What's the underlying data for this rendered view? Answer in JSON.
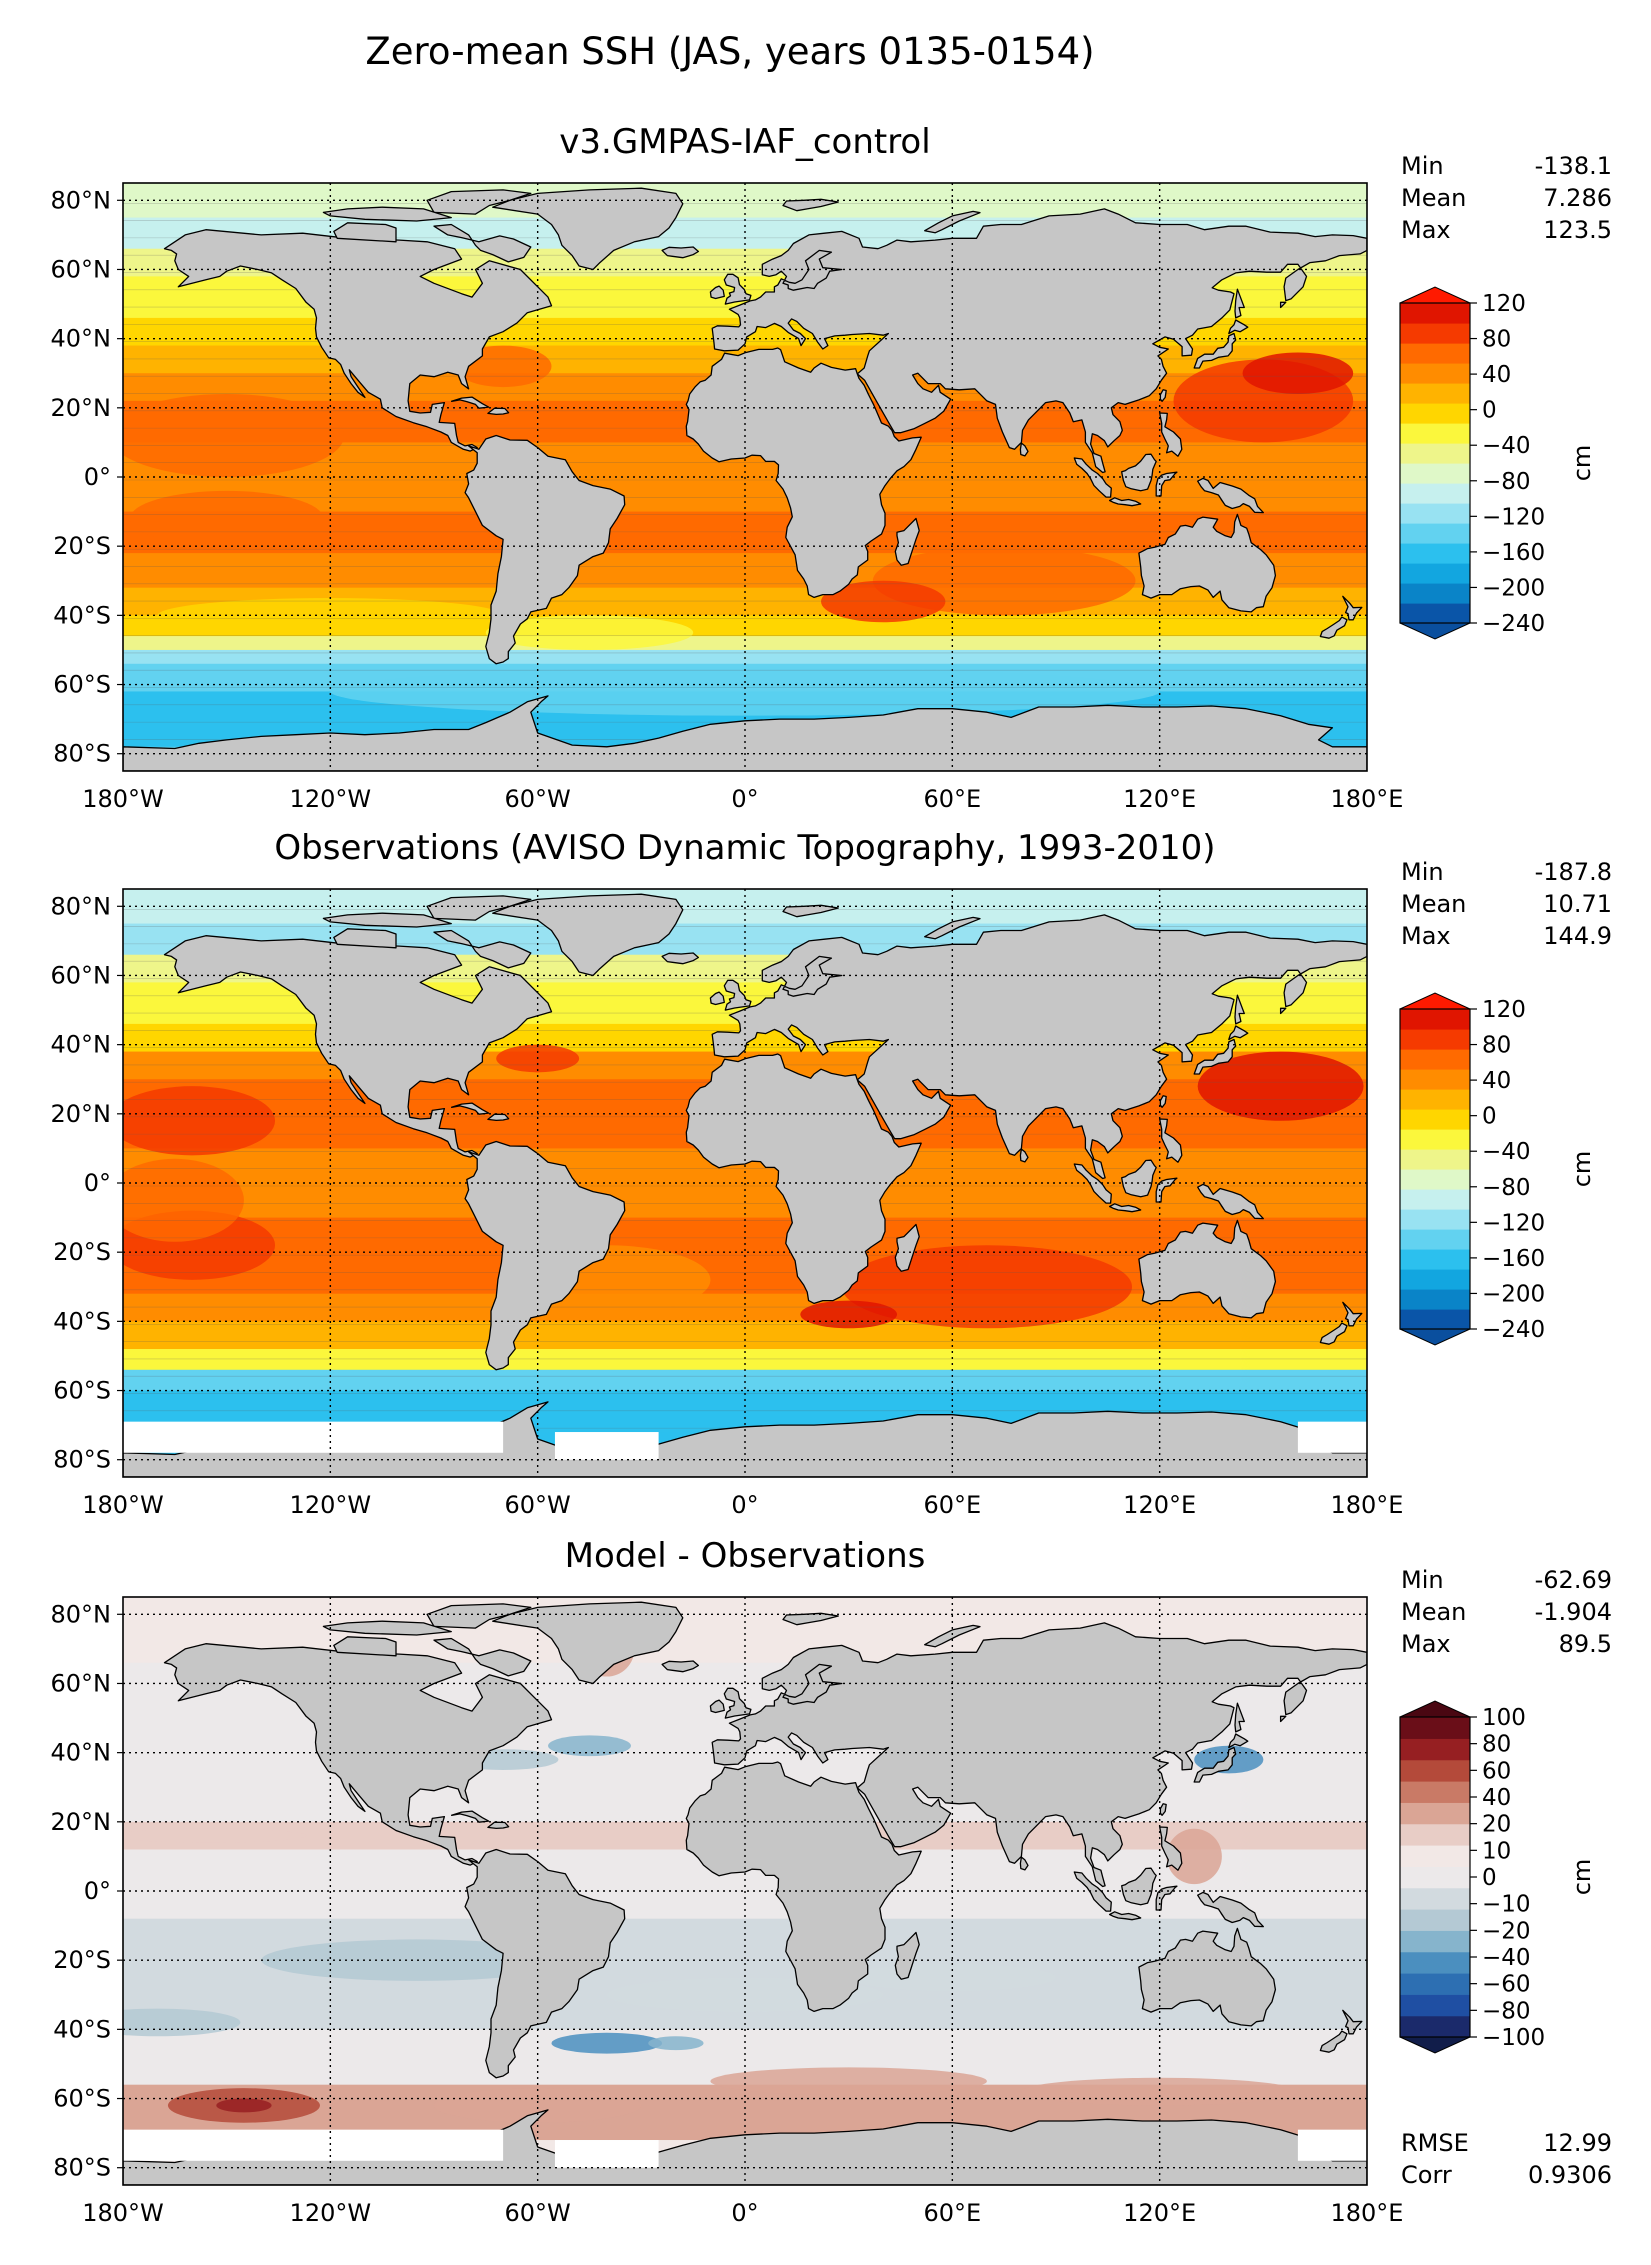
{
  "figure": {
    "title": "Zero-mean SSH (JAS, years 0135-0154)"
  },
  "colors": {
    "land": "#c6c6c6",
    "no_data": "#ffffff",
    "ssh_scale": [
      "#0a55a8",
      "#0a84c8",
      "#12a6e0",
      "#2cc0ee",
      "#62d2f0",
      "#98e2f2",
      "#c6f0ee",
      "#dff8c8",
      "#eef58a",
      "#fbf73c",
      "#ffd600",
      "#ffb300",
      "#ff8c00",
      "#ff6a00",
      "#f53a00",
      "#e01500"
    ],
    "diff_scale": [
      "#1b2a6b",
      "#1f4fa3",
      "#2d6fb2",
      "#4b8fbf",
      "#86b4cc",
      "#b4c9d4",
      "#d2dadf",
      "#ece9ea",
      "#f2e8e6",
      "#e8cdc6",
      "#daa595",
      "#c97a66",
      "#b44a3a",
      "#961f22",
      "#6a0e18"
    ]
  },
  "chart_data": [
    {
      "type": "heatmap",
      "title": "v3.GMPAS-IAF_control",
      "variable": "zero-mean sea surface height",
      "units": "cm",
      "stats": [
        {
          "label": "Min",
          "value": "-138.1"
        },
        {
          "label": "Mean",
          "value": "7.286"
        },
        {
          "label": "Max",
          "value": "123.5"
        }
      ],
      "colorbar": {
        "ticks": [
          "120",
          "80",
          "40",
          "0",
          "−40",
          "−80",
          "−120",
          "−160",
          "−200",
          "−240"
        ],
        "vmin": -240,
        "vmax": 120,
        "label": "cm"
      },
      "xticks": [
        "180°W",
        "120°W",
        "60°W",
        "0°",
        "60°E",
        "120°E",
        "180°E"
      ],
      "yticks": [
        "80°N",
        "60°N",
        "40°N",
        "20°N",
        "0°",
        "20°S",
        "40°S",
        "60°S",
        "80°S"
      ],
      "xlim": [
        -180,
        180
      ],
      "ylim": [
        -85,
        85
      ],
      "grid": true
    },
    {
      "type": "heatmap",
      "title": "Observations (AVISO Dynamic Topography, 1993-2010)",
      "variable": "zero-mean sea surface height",
      "units": "cm",
      "stats": [
        {
          "label": "Min",
          "value": "-187.8"
        },
        {
          "label": "Mean",
          "value": "10.71"
        },
        {
          "label": "Max",
          "value": "144.9"
        }
      ],
      "colorbar": {
        "ticks": [
          "120",
          "80",
          "40",
          "0",
          "−40",
          "−80",
          "−120",
          "−160",
          "−200",
          "−240"
        ],
        "vmin": -240,
        "vmax": 120,
        "label": "cm"
      },
      "xticks": [
        "180°W",
        "120°W",
        "60°W",
        "0°",
        "60°E",
        "120°E",
        "180°E"
      ],
      "yticks": [
        "80°N",
        "60°N",
        "40°N",
        "20°N",
        "0°",
        "20°S",
        "40°S",
        "60°S",
        "80°S"
      ],
      "xlim": [
        -180,
        180
      ],
      "ylim": [
        -85,
        85
      ],
      "grid": true
    },
    {
      "type": "heatmap",
      "title": "Model - Observations",
      "variable": "SSH difference",
      "units": "cm",
      "stats": [
        {
          "label": "Min",
          "value": "-62.69"
        },
        {
          "label": "Mean",
          "value": "-1.904"
        },
        {
          "label": "Max",
          "value": "89.5"
        }
      ],
      "extra_stats": [
        {
          "label": "RMSE",
          "value": "12.99"
        },
        {
          "label": "Corr",
          "value": "0.9306"
        }
      ],
      "colorbar": {
        "ticks": [
          "100",
          "80",
          "60",
          "40",
          "20",
          "10",
          "0",
          "−10",
          "−20",
          "−40",
          "−60",
          "−80",
          "−100"
        ],
        "vmin": -100,
        "vmax": 100,
        "label": "cm"
      },
      "xticks": [
        "180°W",
        "120°W",
        "60°W",
        "0°",
        "60°E",
        "120°E",
        "180°E"
      ],
      "yticks": [
        "80°N",
        "60°N",
        "40°N",
        "20°N",
        "0°",
        "20°S",
        "40°S",
        "60°S",
        "80°S"
      ],
      "xlim": [
        -180,
        180
      ],
      "ylim": [
        -85,
        85
      ],
      "grid": true
    }
  ]
}
